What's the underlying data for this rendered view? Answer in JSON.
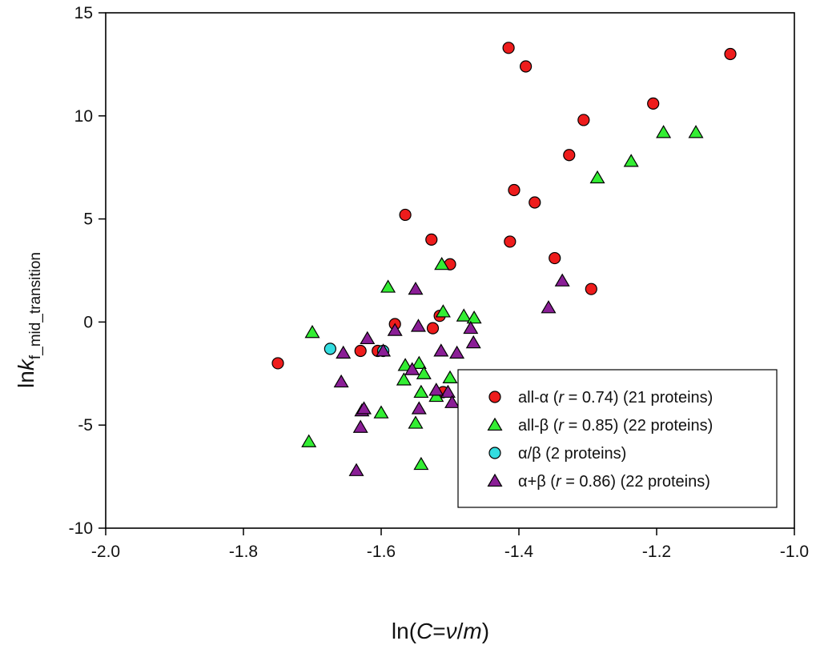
{
  "chart_data": {
    "type": "scatter",
    "xlabel": "ln(C=ν/m)",
    "ylabel": "lnk_f_mid_transition",
    "xlim": [
      -2.0,
      -1.0
    ],
    "ylim": [
      -10,
      15
    ],
    "x_ticks": [
      -2.0,
      -1.8,
      -1.6,
      -1.4,
      -1.2,
      -1.0
    ],
    "x_tick_labels": [
      "-2.0",
      "-1.8",
      "-1.6",
      "-1.4",
      "-1.2",
      "-1.0"
    ],
    "y_ticks": [
      -10,
      -5,
      0,
      5,
      10,
      15
    ],
    "y_tick_labels": [
      "-10",
      "-5",
      "0",
      "5",
      "10",
      "15"
    ],
    "legend_position": "bottom-right",
    "series": [
      {
        "name": "all-α",
        "marker": "circle",
        "color": "#ee1c1c",
        "legend_parts": [
          "all-α (",
          "r",
          " = 0.74) (21 proteins)"
        ],
        "points": [
          [
            -1.75,
            -2.0
          ],
          [
            -1.63,
            -1.4
          ],
          [
            -1.605,
            -1.4
          ],
          [
            -1.58,
            -0.1
          ],
          [
            -1.565,
            5.2
          ],
          [
            -1.527,
            4.0
          ],
          [
            -1.525,
            -0.3
          ],
          [
            -1.515,
            0.3
          ],
          [
            -1.51,
            -3.4
          ],
          [
            -1.5,
            2.8
          ],
          [
            -1.415,
            13.3
          ],
          [
            -1.413,
            3.9
          ],
          [
            -1.407,
            6.4
          ],
          [
            -1.39,
            12.4
          ],
          [
            -1.377,
            5.8
          ],
          [
            -1.348,
            3.1
          ],
          [
            -1.327,
            8.1
          ],
          [
            -1.306,
            9.8
          ],
          [
            -1.295,
            1.6
          ],
          [
            -1.205,
            10.6
          ],
          [
            -1.093,
            13.0
          ]
        ]
      },
      {
        "name": "all-β",
        "marker": "triangle",
        "color": "#33ee33",
        "legend_parts": [
          "all-β (",
          "r",
          " = 0.85) (22 proteins)"
        ],
        "points": [
          [
            -1.705,
            -5.8
          ],
          [
            -1.7,
            -0.5
          ],
          [
            -1.6,
            -4.4
          ],
          [
            -1.59,
            1.7
          ],
          [
            -1.567,
            -2.8
          ],
          [
            -1.565,
            -2.1
          ],
          [
            -1.55,
            -4.9
          ],
          [
            -1.545,
            -2.0
          ],
          [
            -1.542,
            -3.4
          ],
          [
            -1.542,
            -6.9
          ],
          [
            -1.538,
            -2.5
          ],
          [
            -1.52,
            -3.6
          ],
          [
            -1.512,
            2.8
          ],
          [
            -1.51,
            0.5
          ],
          [
            -1.5,
            -2.7
          ],
          [
            -1.48,
            0.3
          ],
          [
            -1.465,
            0.2
          ],
          [
            -1.286,
            7.0
          ],
          [
            -1.237,
            7.8
          ],
          [
            -1.19,
            9.2
          ],
          [
            -1.143,
            9.2
          ],
          [
            -1.47,
            -3.0
          ]
        ]
      },
      {
        "name": "α/β",
        "marker": "circle",
        "color": "#33dde0",
        "legend_parts": [
          "α/β",
          "",
          "                    (2 proteins)"
        ],
        "points": [
          [
            -1.674,
            -1.3
          ],
          [
            -1.597,
            -1.4
          ]
        ]
      },
      {
        "name": "α+β",
        "marker": "triangle",
        "color": "#8a1e96",
        "legend_parts": [
          "α+β (",
          "r",
          " = 0.86) (22 proteins)"
        ],
        "points": [
          [
            -1.658,
            -2.9
          ],
          [
            -1.655,
            -1.5
          ],
          [
            -1.636,
            -7.2
          ],
          [
            -1.63,
            -5.1
          ],
          [
            -1.628,
            -4.3
          ],
          [
            -1.625,
            -4.2
          ],
          [
            -1.62,
            -0.8
          ],
          [
            -1.597,
            -1.4
          ],
          [
            -1.58,
            -0.4
          ],
          [
            -1.555,
            -2.3
          ],
          [
            -1.55,
            1.6
          ],
          [
            -1.546,
            -0.2
          ],
          [
            -1.545,
            -4.2
          ],
          [
            -1.513,
            -1.4
          ],
          [
            -1.503,
            -3.4
          ],
          [
            -1.497,
            -3.9
          ],
          [
            -1.49,
            -1.5
          ],
          [
            -1.47,
            -0.3
          ],
          [
            -1.466,
            -1.0
          ],
          [
            -1.357,
            0.7
          ],
          [
            -1.337,
            2.0
          ],
          [
            -1.52,
            -3.3
          ]
        ]
      }
    ]
  }
}
